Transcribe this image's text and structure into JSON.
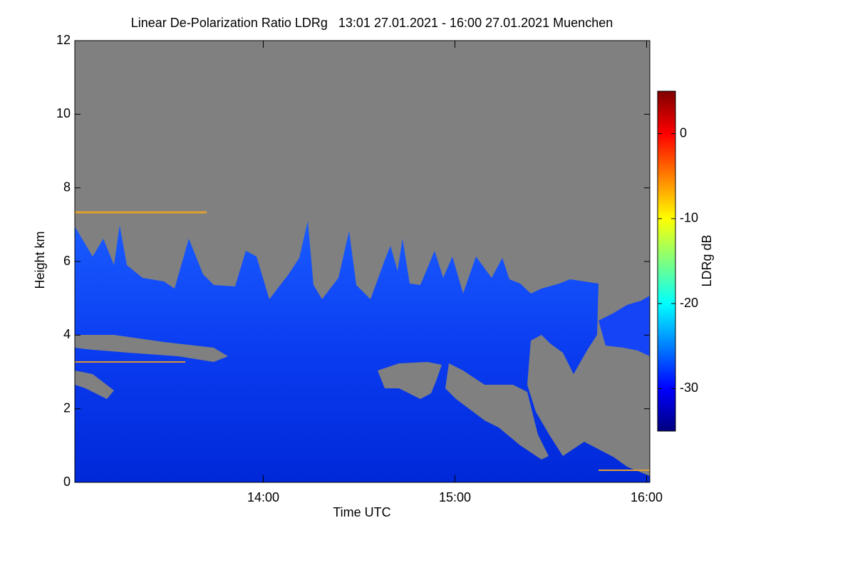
{
  "chart_data": {
    "type": "heatmap",
    "title": "Linear De-Polarization Ratio LDRg   13:01 27.01.2021 - 16:00 27.01.2021 Muenchen",
    "x_label": "Time UTC",
    "y_label": "Height km",
    "xlim": [
      13.0167,
      16.0167
    ],
    "xticks": [
      {
        "value": 14,
        "label": "14:00"
      },
      {
        "value": 15,
        "label": "15:00"
      },
      {
        "value": 16,
        "label": "16:00"
      }
    ],
    "ylim": [
      0,
      12
    ],
    "yticks": [
      0,
      2,
      4,
      6,
      8,
      10,
      12
    ],
    "colorbar": {
      "label": "LDRg dB",
      "clim": [
        -35,
        5
      ],
      "ticks": [
        0,
        -10,
        -20,
        -30
      ],
      "colormap": "jet"
    }
  }
}
